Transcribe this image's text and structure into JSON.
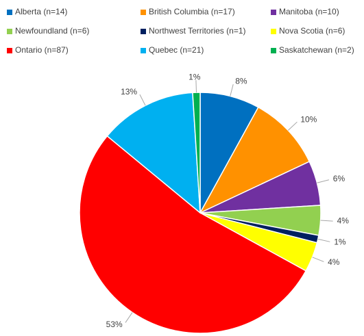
{
  "chart_data": {
    "type": "pie",
    "categories": [
      "Alberta (n=14)",
      "British Columbia (n=17)",
      "Manitoba (n=10)",
      "Newfoundland (n=6)",
      "Northwest Territories (n=1)",
      "Nova Scotia (n=6)",
      "Ontario (n=87)",
      "Quebec (n=21)",
      "Saskatchewan (n=2)"
    ],
    "values": [
      8,
      10,
      6,
      4,
      1,
      4,
      53,
      13,
      1
    ],
    "value_labels": [
      "8%",
      "10%",
      "6%",
      "4%",
      "1%",
      "4%",
      "53%",
      "13%",
      "1%"
    ],
    "colors": [
      "#0070c0",
      "#ff9100",
      "#7030a0",
      "#92d050",
      "#002060",
      "#ffff00",
      "#ff0000",
      "#00b0f0",
      "#00b050"
    ],
    "legend": "top"
  }
}
